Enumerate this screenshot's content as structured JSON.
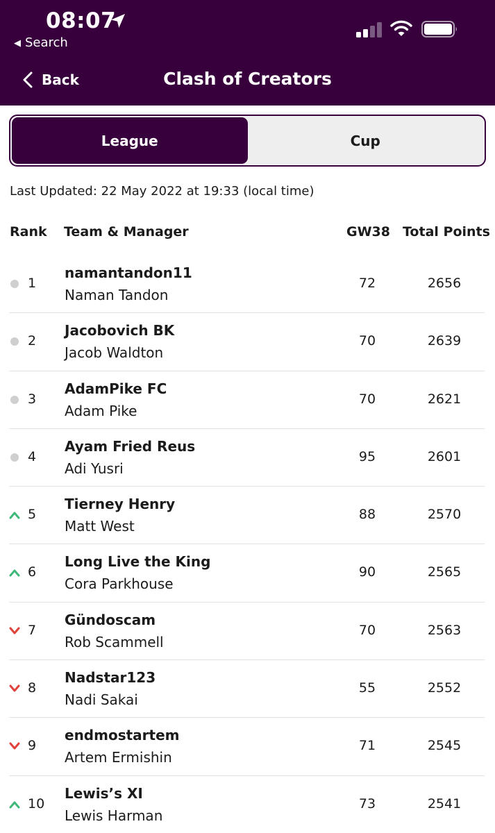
{
  "status_bar": {
    "time": "08:07",
    "back_app": "Search"
  },
  "header": {
    "back_label": "Back",
    "title": "Clash of Creators"
  },
  "tabs": [
    {
      "label": "League",
      "active": true
    },
    {
      "label": "Cup",
      "active": false
    }
  ],
  "last_updated": "Last Updated: 22 May 2022 at 19:33 (local time)",
  "table": {
    "columns": [
      "Rank",
      "Team & Manager",
      "GW38",
      "Total Points"
    ],
    "rows": [
      {
        "movement": "same",
        "rank": "1",
        "team": "namantandon11",
        "manager": "Naman Tandon",
        "gw": "72",
        "total": "2656"
      },
      {
        "movement": "same",
        "rank": "2",
        "team": "Jacobovich BK",
        "manager": "Jacob Waldton",
        "gw": "70",
        "total": "2639"
      },
      {
        "movement": "same",
        "rank": "3",
        "team": "AdamPike FC",
        "manager": "Adam Pike",
        "gw": "70",
        "total": "2621"
      },
      {
        "movement": "same",
        "rank": "4",
        "team": "Ayam Fried Reus",
        "manager": "Adi Yusri",
        "gw": "95",
        "total": "2601"
      },
      {
        "movement": "up",
        "rank": "5",
        "team": "Tierney Henry",
        "manager": "Matt West",
        "gw": "88",
        "total": "2570"
      },
      {
        "movement": "up",
        "rank": "6",
        "team": "Long Live the King",
        "manager": "Cora Parkhouse",
        "gw": "90",
        "total": "2565"
      },
      {
        "movement": "down",
        "rank": "7",
        "team": "Gündoscam",
        "manager": "Rob Scammell",
        "gw": "70",
        "total": "2563"
      },
      {
        "movement": "down",
        "rank": "8",
        "team": "Nadstar123",
        "manager": "Nadi Sakai",
        "gw": "55",
        "total": "2552"
      },
      {
        "movement": "down",
        "rank": "9",
        "team": "endmostartem",
        "manager": "Artem Ermishin",
        "gw": "71",
        "total": "2545"
      },
      {
        "movement": "up",
        "rank": "10",
        "team": "Lewis’s XI",
        "manager": "Lewis Harman",
        "gw": "73",
        "total": "2541"
      }
    ]
  },
  "colors": {
    "brand_purple": "#37003c",
    "up": "#3fb87a",
    "down": "#e0413a",
    "same": "#cfcfcf"
  }
}
